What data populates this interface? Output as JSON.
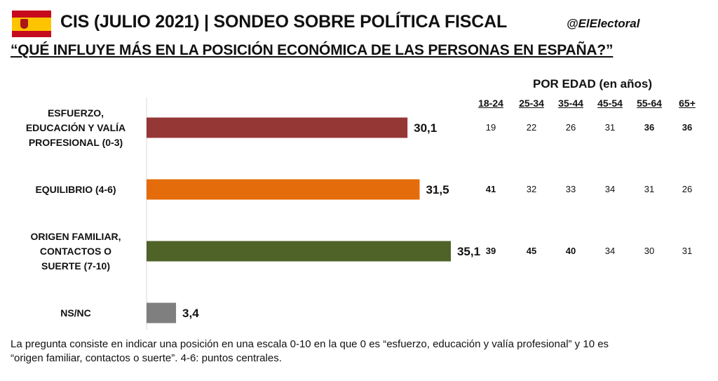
{
  "header": {
    "title": "CIS (JULIO 2021) | SONDEO SOBRE POLÍTICA FISCAL",
    "handle": "@ElElectoral",
    "question": "“QUÉ INFLUYE MÁS EN LA POSICIÓN ECONÓMICA DE LAS PERSONAS EN ESPAÑA?”",
    "flag_colors": [
      "#c60b1e",
      "#ffc400"
    ]
  },
  "chart_data": {
    "type": "bar",
    "orientation": "horizontal",
    "categories": [
      "ESFUERZO, EDUCACIÓN Y VALÍA PROFESIONAL (0-3)",
      "EQUILIBRIO (4-6)",
      "ORIGEN FAMILIAR, CONTACTOS O SUERTE (7-10)",
      "NS/NC"
    ],
    "category_lines": [
      [
        "ESFUERZO,",
        "EDUCACIÓN Y VALÍA",
        "PROFESIONAL (0-3)"
      ],
      [
        "EQUILIBRIO (4-6)"
      ],
      [
        "ORIGEN FAMILIAR,",
        "CONTACTOS O",
        "SUERTE (7-10)"
      ],
      [
        "NS/NC"
      ]
    ],
    "values": [
      30.1,
      31.5,
      35.1,
      3.4
    ],
    "value_labels": [
      "30,1",
      "31,5",
      "35,1",
      "3,4"
    ],
    "colors": [
      "#953735",
      "#e46c0a",
      "#4f6228",
      "#7f7f7f"
    ],
    "xlim": [
      0,
      55
    ],
    "grid": false
  },
  "age_table": {
    "title": "POR EDAD (en años)",
    "headers": [
      "18-24",
      "25-34",
      "35-44",
      "45-54",
      "55-64",
      "65+"
    ],
    "rows": [
      {
        "values": [
          "19",
          "22",
          "26",
          "31",
          "36",
          "36"
        ],
        "bold": [
          false,
          false,
          false,
          false,
          true,
          true
        ]
      },
      {
        "values": [
          "41",
          "32",
          "33",
          "34",
          "31",
          "26"
        ],
        "bold": [
          true,
          false,
          false,
          false,
          false,
          false
        ]
      },
      {
        "values": [
          "39",
          "45",
          "40",
          "34",
          "30",
          "31"
        ],
        "bold": [
          true,
          true,
          true,
          false,
          false,
          false
        ]
      }
    ]
  },
  "footnote": "La pregunta consiste en indicar una posición en una escala 0-10 en la que 0 es “esfuerzo, educación y valía profesional” y 10 es “origen familiar, contactos o suerte”. 4-6: puntos centrales."
}
